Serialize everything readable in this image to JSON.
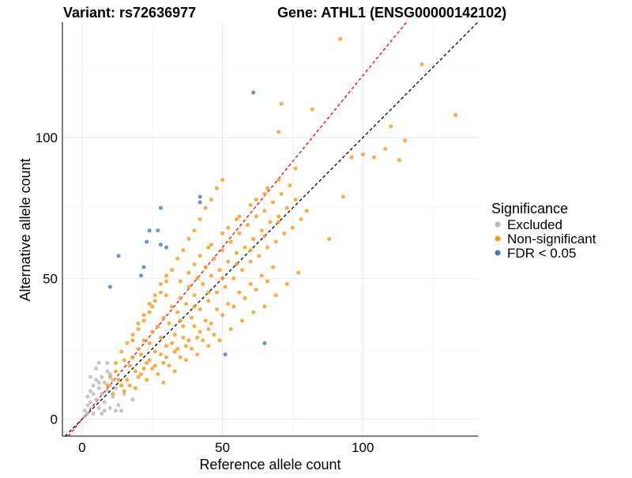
{
  "chart_data": {
    "type": "scatter",
    "title_left": "Variant: rs72636977",
    "title_right": "Gene: ATHL1 (ENSG00000142102)",
    "xlabel": "Reference allele count",
    "ylabel": "Alternative allele count",
    "xlim": [
      -7,
      141
    ],
    "ylim": [
      -6,
      141
    ],
    "x_ticks": [
      0,
      50,
      100
    ],
    "y_ticks": [
      0,
      50,
      100
    ],
    "grid": true,
    "legend": {
      "title": "Significance",
      "position": "right",
      "entries": [
        {
          "label": "Excluded",
          "color": "#b8b8b8"
        },
        {
          "label": "Non-significant",
          "color": "#fb9a1f"
        },
        {
          "label": "FDR < 0.05",
          "color": "#4a7db5"
        }
      ]
    },
    "reference_lines": [
      {
        "name": "y = x",
        "slope": 1.0,
        "intercept": 0,
        "style": "dashed",
        "color": "#000000"
      },
      {
        "name": "fitted",
        "slope": 1.22,
        "intercept": 0,
        "style": "dashed",
        "color": "#ff0000"
      }
    ],
    "series": [
      {
        "name": "Excluded",
        "color": "#b8b8b8",
        "points": [
          [
            1,
            3
          ],
          [
            2,
            5
          ],
          [
            2,
            8
          ],
          [
            3,
            10
          ],
          [
            3,
            6
          ],
          [
            4,
            12
          ],
          [
            4,
            9
          ],
          [
            5,
            14
          ],
          [
            5,
            7
          ],
          [
            6,
            11
          ],
          [
            6,
            4
          ],
          [
            7,
            15
          ],
          [
            7,
            9
          ],
          [
            8,
            13
          ],
          [
            8,
            6
          ],
          [
            9,
            20
          ],
          [
            9,
            10
          ],
          [
            10,
            12
          ],
          [
            10,
            4
          ],
          [
            11,
            8
          ],
          [
            12,
            11
          ],
          [
            13,
            5
          ],
          [
            15,
            9
          ],
          [
            18,
            7
          ],
          [
            3,
            15
          ],
          [
            5,
            18
          ],
          [
            6,
            20
          ],
          [
            4,
            2
          ],
          [
            7,
            2
          ],
          [
            8,
            3
          ],
          [
            9,
            17
          ],
          [
            6,
            13
          ],
          [
            2,
            2
          ],
          [
            1,
            1
          ],
          [
            10,
            16
          ],
          [
            12,
            3
          ],
          [
            11,
            14
          ],
          [
            14,
            3
          ]
        ]
      },
      {
        "name": "Non-significant",
        "color": "#fb9a1f",
        "points": [
          [
            9,
            12
          ],
          [
            10,
            15
          ],
          [
            11,
            9
          ],
          [
            12,
            17
          ],
          [
            13,
            14
          ],
          [
            14,
            12
          ],
          [
            15,
            21
          ],
          [
            16,
            14
          ],
          [
            17,
            19
          ],
          [
            18,
            22
          ],
          [
            19,
            17
          ],
          [
            20,
            25
          ],
          [
            21,
            23
          ],
          [
            22,
            28
          ],
          [
            23,
            20
          ],
          [
            24,
            27
          ],
          [
            25,
            31
          ],
          [
            26,
            24
          ],
          [
            27,
            33
          ],
          [
            28,
            29
          ],
          [
            29,
            36
          ],
          [
            30,
            26
          ],
          [
            31,
            34
          ],
          [
            32,
            40
          ],
          [
            33,
            30
          ],
          [
            34,
            38
          ],
          [
            35,
            43
          ],
          [
            36,
            33
          ],
          [
            37,
            41
          ],
          [
            38,
            47
          ],
          [
            39,
            36
          ],
          [
            40,
            44
          ],
          [
            41,
            50
          ],
          [
            42,
            39
          ],
          [
            43,
            48
          ],
          [
            44,
            54
          ],
          [
            45,
            42
          ],
          [
            46,
            51
          ],
          [
            47,
            57
          ],
          [
            48,
            45
          ],
          [
            49,
            53
          ],
          [
            50,
            60
          ],
          [
            51,
            47
          ],
          [
            52,
            56
          ],
          [
            53,
            63
          ],
          [
            54,
            50
          ],
          [
            55,
            59
          ],
          [
            56,
            66
          ],
          [
            57,
            53
          ],
          [
            58,
            61
          ],
          [
            59,
            69
          ],
          [
            60,
            56
          ],
          [
            61,
            64
          ],
          [
            62,
            72
          ],
          [
            63,
            58
          ],
          [
            64,
            67
          ],
          [
            65,
            74
          ],
          [
            66,
            61
          ],
          [
            67,
            70
          ],
          [
            68,
            77
          ],
          [
            69,
            63
          ],
          [
            70,
            72
          ],
          [
            71,
            80
          ],
          [
            72,
            66
          ],
          [
            73,
            75
          ],
          [
            74,
            83
          ],
          [
            75,
            68
          ],
          [
            76,
            78
          ],
          [
            78,
            71
          ],
          [
            80,
            74
          ],
          [
            20,
            15
          ],
          [
            22,
            18
          ],
          [
            24,
            21
          ],
          [
            26,
            19
          ],
          [
            28,
            23
          ],
          [
            30,
            22
          ],
          [
            32,
            27
          ],
          [
            34,
            25
          ],
          [
            36,
            29
          ],
          [
            38,
            28
          ],
          [
            40,
            33
          ],
          [
            42,
            31
          ],
          [
            44,
            35
          ],
          [
            46,
            34
          ],
          [
            48,
            39
          ],
          [
            50,
            37
          ],
          [
            52,
            41
          ],
          [
            54,
            40
          ],
          [
            56,
            45
          ],
          [
            58,
            43
          ],
          [
            60,
            48
          ],
          [
            62,
            46
          ],
          [
            64,
            51
          ],
          [
            66,
            49
          ],
          [
            68,
            54
          ],
          [
            18,
            28
          ],
          [
            20,
            32
          ],
          [
            22,
            35
          ],
          [
            24,
            38
          ],
          [
            26,
            42
          ],
          [
            28,
            45
          ],
          [
            30,
            49
          ],
          [
            32,
            53
          ],
          [
            34,
            57
          ],
          [
            36,
            60
          ],
          [
            38,
            64
          ],
          [
            40,
            67
          ],
          [
            42,
            71
          ],
          [
            44,
            75
          ],
          [
            46,
            78
          ],
          [
            48,
            82
          ],
          [
            50,
            85
          ],
          [
            25,
            40
          ],
          [
            30,
            44
          ],
          [
            35,
            49
          ],
          [
            40,
            55
          ],
          [
            45,
            61
          ],
          [
            50,
            66
          ],
          [
            55,
            71
          ],
          [
            60,
            76
          ],
          [
            65,
            80
          ],
          [
            70,
            85
          ],
          [
            15,
            10
          ],
          [
            17,
            12
          ],
          [
            19,
            11
          ],
          [
            21,
            16
          ],
          [
            23,
            14
          ],
          [
            25,
            18
          ],
          [
            27,
            16
          ],
          [
            29,
            20
          ],
          [
            31,
            19
          ],
          [
            33,
            24
          ],
          [
            35,
            22
          ],
          [
            37,
            26
          ],
          [
            39,
            25
          ],
          [
            41,
            29
          ],
          [
            43,
            28
          ],
          [
            45,
            32
          ],
          [
            47,
            30
          ],
          [
            12,
            20
          ],
          [
            14,
            24
          ],
          [
            16,
            27
          ],
          [
            18,
            30
          ],
          [
            20,
            34
          ],
          [
            22,
            37
          ],
          [
            24,
            41
          ],
          [
            26,
            44
          ],
          [
            28,
            48
          ],
          [
            30,
            51
          ],
          [
            35,
            35
          ],
          [
            40,
            40
          ],
          [
            45,
            45
          ],
          [
            50,
            50
          ],
          [
            55,
            55
          ],
          [
            60,
            60
          ],
          [
            65,
            65
          ],
          [
            70,
            70
          ],
          [
            38,
            52
          ],
          [
            42,
            58
          ],
          [
            46,
            62
          ],
          [
            52,
            68
          ],
          [
            56,
            72
          ],
          [
            62,
            78
          ],
          [
            66,
            82
          ],
          [
            29,
            13
          ],
          [
            33,
            17
          ],
          [
            37,
            21
          ],
          [
            41,
            23
          ],
          [
            45,
            26
          ],
          [
            49,
            28
          ],
          [
            53,
            32
          ],
          [
            57,
            35
          ],
          [
            61,
            38
          ],
          [
            65,
            40
          ],
          [
            69,
            44
          ],
          [
            73,
            48
          ],
          [
            77,
            52
          ],
          [
            70,
            102
          ],
          [
            71,
            112
          ],
          [
            76,
            89
          ],
          [
            82,
            110
          ],
          [
            88,
            64
          ],
          [
            92,
            135
          ],
          [
            93,
            79
          ],
          [
            96,
            93
          ],
          [
            100,
            94
          ],
          [
            104,
            93
          ],
          [
            108,
            96
          ],
          [
            110,
            104
          ],
          [
            113,
            92
          ],
          [
            115,
            99
          ],
          [
            121,
            126
          ],
          [
            133,
            108
          ]
        ]
      },
      {
        "name": "FDR < 0.05",
        "color": "#4a7db5",
        "points": [
          [
            10,
            47
          ],
          [
            13,
            58
          ],
          [
            21,
            51
          ],
          [
            22,
            54
          ],
          [
            23,
            63
          ],
          [
            24,
            67
          ],
          [
            27,
            67
          ],
          [
            28,
            62
          ],
          [
            28,
            75
          ],
          [
            30,
            61
          ],
          [
            42,
            77
          ],
          [
            42,
            79
          ],
          [
            51,
            23
          ],
          [
            61,
            116
          ],
          [
            65,
            27
          ]
        ]
      }
    ]
  }
}
